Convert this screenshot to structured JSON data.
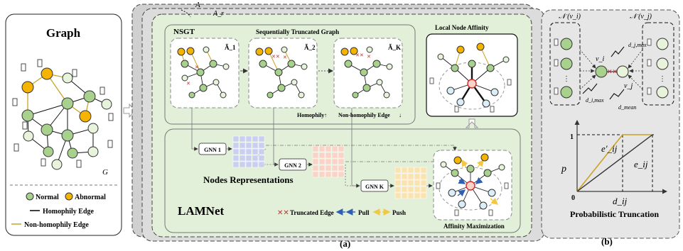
{
  "graph_panel": {
    "title": "Graph",
    "graph_symbol": "G",
    "legend": {
      "normal": "Normal",
      "abnormal": "Abnormal",
      "homophily_edge": "Homophily Edge",
      "non_homophily_edge": "Non-homophily  Edge"
    }
  },
  "panel_a": {
    "stack_labels": [
      "A",
      "A_r"
    ],
    "nsgt_label": "NSGT",
    "nsgt_title": "Sequentially Truncated Graph",
    "graph_labels": [
      "Ã_1",
      "Ã_2",
      "Ã_K"
    ],
    "homophily_label": "Homophily",
    "non_homophily_label": "Non-homophily Edge",
    "local_affinity_title": "Local Node Affinity",
    "gnn_labels": [
      "GNN 1",
      "GNN 2",
      "GNN K"
    ],
    "nodes_representations": "Nodes Representations",
    "lamnet_label": "LAMNet",
    "truncated_edge": "Truncated Edge",
    "pull": "Pull",
    "push": "Push",
    "affinity_maximization": "Affinity Maximization",
    "caption": "(a)"
  },
  "panel_b": {
    "neighborhood_left": "𝒩 (v_i)",
    "neighborhood_right": "𝒩 (v_j)",
    "vi": "v_i",
    "vj": "v_j",
    "dj_max": "d_j,max",
    "di_max": "d_i,max",
    "d_mean": "d_mean",
    "y_axis": "p",
    "y_tick": "1",
    "x_origin": "0",
    "e_prime": "e′_ij",
    "e_ij": "e_ij",
    "d_ij": "d_ij",
    "title": "Probabilistic Truncation",
    "caption": "(b)"
  },
  "colors": {
    "normal_node": "#a9d18e",
    "abnormal_node": "#f4b400",
    "light_node": "#e8f3dc",
    "homophily_edge": "#000000",
    "non_homophily_edge": "#c9a227",
    "panel_green": "#e2efd9",
    "truncated": "#d9262c",
    "pull": "#2e5fb3",
    "push": "#f2c744",
    "rep_blue": "#c9cfef",
    "rep_pink": "#f8d3c6",
    "rep_yellow": "#fbe3b0"
  }
}
